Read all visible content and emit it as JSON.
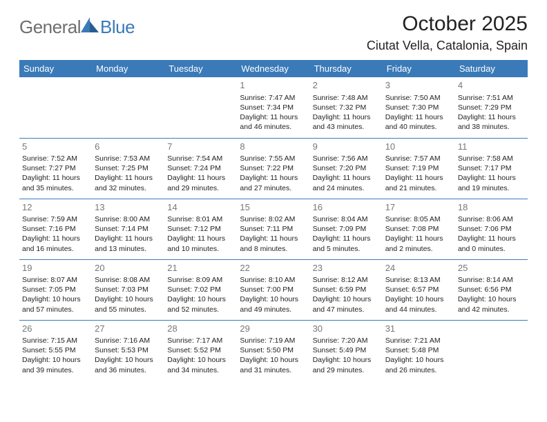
{
  "logo": {
    "general": "General",
    "blue": "Blue"
  },
  "title": "October 2025",
  "location": "Ciutat Vella, Catalonia, Spain",
  "colors": {
    "header_bg": "#3a7ab8",
    "header_text": "#ffffff",
    "border": "#3a7ab8",
    "daynum": "#777777",
    "logo_grey": "#6e6e6e",
    "logo_blue": "#3a7ab8"
  },
  "day_headers": [
    "Sunday",
    "Monday",
    "Tuesday",
    "Wednesday",
    "Thursday",
    "Friday",
    "Saturday"
  ],
  "weeks": [
    [
      null,
      null,
      null,
      {
        "n": "1",
        "sr": "7:47 AM",
        "ss": "7:34 PM",
        "dl": "11 hours and 46 minutes."
      },
      {
        "n": "2",
        "sr": "7:48 AM",
        "ss": "7:32 PM",
        "dl": "11 hours and 43 minutes."
      },
      {
        "n": "3",
        "sr": "7:50 AM",
        "ss": "7:30 PM",
        "dl": "11 hours and 40 minutes."
      },
      {
        "n": "4",
        "sr": "7:51 AM",
        "ss": "7:29 PM",
        "dl": "11 hours and 38 minutes."
      }
    ],
    [
      {
        "n": "5",
        "sr": "7:52 AM",
        "ss": "7:27 PM",
        "dl": "11 hours and 35 minutes."
      },
      {
        "n": "6",
        "sr": "7:53 AM",
        "ss": "7:25 PM",
        "dl": "11 hours and 32 minutes."
      },
      {
        "n": "7",
        "sr": "7:54 AM",
        "ss": "7:24 PM",
        "dl": "11 hours and 29 minutes."
      },
      {
        "n": "8",
        "sr": "7:55 AM",
        "ss": "7:22 PM",
        "dl": "11 hours and 27 minutes."
      },
      {
        "n": "9",
        "sr": "7:56 AM",
        "ss": "7:20 PM",
        "dl": "11 hours and 24 minutes."
      },
      {
        "n": "10",
        "sr": "7:57 AM",
        "ss": "7:19 PM",
        "dl": "11 hours and 21 minutes."
      },
      {
        "n": "11",
        "sr": "7:58 AM",
        "ss": "7:17 PM",
        "dl": "11 hours and 19 minutes."
      }
    ],
    [
      {
        "n": "12",
        "sr": "7:59 AM",
        "ss": "7:16 PM",
        "dl": "11 hours and 16 minutes."
      },
      {
        "n": "13",
        "sr": "8:00 AM",
        "ss": "7:14 PM",
        "dl": "11 hours and 13 minutes."
      },
      {
        "n": "14",
        "sr": "8:01 AM",
        "ss": "7:12 PM",
        "dl": "11 hours and 10 minutes."
      },
      {
        "n": "15",
        "sr": "8:02 AM",
        "ss": "7:11 PM",
        "dl": "11 hours and 8 minutes."
      },
      {
        "n": "16",
        "sr": "8:04 AM",
        "ss": "7:09 PM",
        "dl": "11 hours and 5 minutes."
      },
      {
        "n": "17",
        "sr": "8:05 AM",
        "ss": "7:08 PM",
        "dl": "11 hours and 2 minutes."
      },
      {
        "n": "18",
        "sr": "8:06 AM",
        "ss": "7:06 PM",
        "dl": "11 hours and 0 minutes."
      }
    ],
    [
      {
        "n": "19",
        "sr": "8:07 AM",
        "ss": "7:05 PM",
        "dl": "10 hours and 57 minutes."
      },
      {
        "n": "20",
        "sr": "8:08 AM",
        "ss": "7:03 PM",
        "dl": "10 hours and 55 minutes."
      },
      {
        "n": "21",
        "sr": "8:09 AM",
        "ss": "7:02 PM",
        "dl": "10 hours and 52 minutes."
      },
      {
        "n": "22",
        "sr": "8:10 AM",
        "ss": "7:00 PM",
        "dl": "10 hours and 49 minutes."
      },
      {
        "n": "23",
        "sr": "8:12 AM",
        "ss": "6:59 PM",
        "dl": "10 hours and 47 minutes."
      },
      {
        "n": "24",
        "sr": "8:13 AM",
        "ss": "6:57 PM",
        "dl": "10 hours and 44 minutes."
      },
      {
        "n": "25",
        "sr": "8:14 AM",
        "ss": "6:56 PM",
        "dl": "10 hours and 42 minutes."
      }
    ],
    [
      {
        "n": "26",
        "sr": "7:15 AM",
        "ss": "5:55 PM",
        "dl": "10 hours and 39 minutes."
      },
      {
        "n": "27",
        "sr": "7:16 AM",
        "ss": "5:53 PM",
        "dl": "10 hours and 36 minutes."
      },
      {
        "n": "28",
        "sr": "7:17 AM",
        "ss": "5:52 PM",
        "dl": "10 hours and 34 minutes."
      },
      {
        "n": "29",
        "sr": "7:19 AM",
        "ss": "5:50 PM",
        "dl": "10 hours and 31 minutes."
      },
      {
        "n": "30",
        "sr": "7:20 AM",
        "ss": "5:49 PM",
        "dl": "10 hours and 29 minutes."
      },
      {
        "n": "31",
        "sr": "7:21 AM",
        "ss": "5:48 PM",
        "dl": "10 hours and 26 minutes."
      },
      null
    ]
  ],
  "labels": {
    "sunrise": "Sunrise:",
    "sunset": "Sunset:",
    "daylight": "Daylight:"
  }
}
